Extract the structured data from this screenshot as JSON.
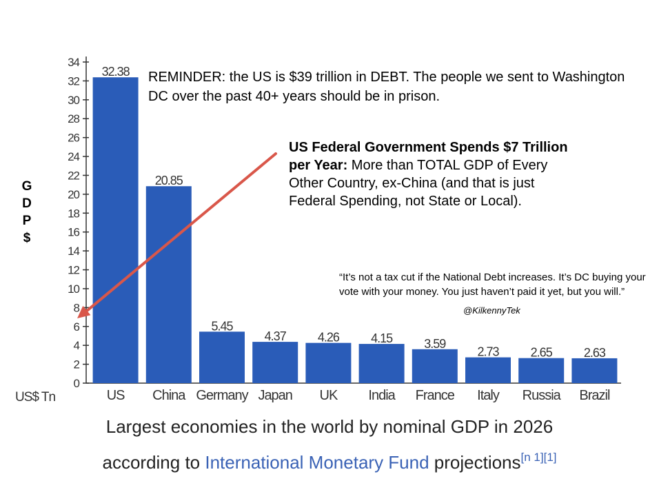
{
  "chart_data": {
    "type": "bar",
    "categories": [
      "US",
      "China",
      "Germany",
      "Japan",
      "UK",
      "India",
      "France",
      "Italy",
      "Russia",
      "Brazil"
    ],
    "values": [
      32.38,
      20.85,
      5.45,
      4.37,
      4.26,
      4.15,
      3.59,
      2.73,
      2.65,
      2.63
    ],
    "value_labels": [
      "32.38",
      "20.85",
      "5.45",
      "4.37",
      "4.26",
      "4.15",
      "3.59",
      "2.73",
      "2.65",
      "2.63"
    ],
    "ylim": [
      0,
      34
    ],
    "yticks": [
      0,
      2,
      4,
      6,
      8,
      10,
      12,
      14,
      16,
      18,
      20,
      22,
      24,
      26,
      28,
      30,
      32,
      34
    ],
    "grid": false,
    "bar_color": "#2a5cb8",
    "unit_label": "US$ Tn",
    "ylabel": "GDP$"
  },
  "annotations": {
    "reminder": "REMINDER: the US is $39 trillion in DEBT. The people we sent to Washington DC over the past 40+ years should be in prison.",
    "spend_bold": "US Federal Government Spends $7 Trillion per Year:",
    "spend_rest": " More than TOTAL GDP of Every Other Country, ex-China (and that is just Federal Spending, not State or Local).",
    "quote": "“It’s not a tax cut if the National Debt increases. It’s DC buying your vote with your money. You just haven’t paid it yet, but you will.”",
    "handle": "@KilkennyTek",
    "arrow_color": "#d9574a",
    "arrow_target_value": 7
  },
  "caption": {
    "line1": "Largest economies in the world by nominal GDP in 2026",
    "line2_prefix": "according to ",
    "line2_link": "International Monetary Fund",
    "line2_suffix": " projections",
    "superscript": "[n 1][1]",
    "link_color": "#3a62b5"
  }
}
